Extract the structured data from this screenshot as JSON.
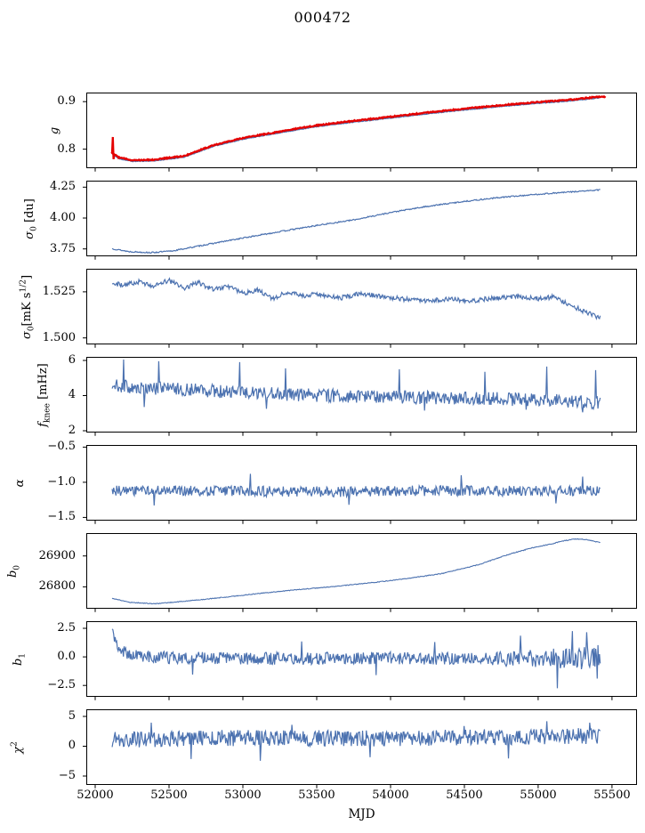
{
  "chart_data": {
    "type": "line",
    "title": "000472",
    "xlabel": "MJD",
    "xlim": [
      51940,
      55669
    ],
    "x_ticks": [
      52000,
      52500,
      53000,
      53500,
      54000,
      54500,
      55000,
      55500
    ],
    "x_tick_labels": [
      "52000",
      "52500",
      "53000",
      "53500",
      "54000",
      "54500",
      "55000",
      "55500"
    ],
    "colors": {
      "blue": "#4c72b0",
      "red": "#e50000",
      "axis": "#000000"
    },
    "panels": [
      {
        "name": "g",
        "ylabel": {
          "pre": "g"
        },
        "ylim": [
          0.76,
          0.919
        ],
        "yticks": [
          0.9,
          0.8
        ],
        "ytick_labels": [
          "0.9",
          "0.8"
        ],
        "series": [
          {
            "name": "g-raw",
            "color": "#4c72b0",
            "lw": 1.4,
            "n": 700,
            "x0": 52110,
            "x1": 55420,
            "seed": 11,
            "noise": 0.0008,
            "trend": [
              [
                52110,
                0.792
              ],
              [
                52160,
                0.78
              ],
              [
                52250,
                0.7745
              ],
              [
                52400,
                0.7755
              ],
              [
                52600,
                0.783
              ],
              [
                52800,
                0.806
              ],
              [
                53000,
                0.821
              ],
              [
                53250,
                0.8345
              ],
              [
                53500,
                0.8475
              ],
              [
                53750,
                0.857
              ],
              [
                54000,
                0.8655
              ],
              [
                54250,
                0.8745
              ],
              [
                54500,
                0.8825
              ],
              [
                54750,
                0.89
              ],
              [
                55000,
                0.8965
              ],
              [
                55200,
                0.901
              ],
              [
                55420,
                0.908
              ]
            ]
          },
          {
            "name": "g-fit",
            "color": "#e50000",
            "lw": 2.3,
            "n": 700,
            "x0": 52110,
            "x1": 55455,
            "seed": 12,
            "noise": 0.0012,
            "trend": [
              [
                52110,
                0.7945
              ],
              [
                52160,
                0.7825
              ],
              [
                52250,
                0.777
              ],
              [
                52400,
                0.778
              ],
              [
                52600,
                0.7855
              ],
              [
                52800,
                0.8085
              ],
              [
                53000,
                0.8235
              ],
              [
                53250,
                0.837
              ],
              [
                53500,
                0.85
              ],
              [
                53750,
                0.8595
              ],
              [
                54000,
                0.868
              ],
              [
                54250,
                0.877
              ],
              [
                54500,
                0.885
              ],
              [
                54750,
                0.8925
              ],
              [
                55000,
                0.899
              ],
              [
                55200,
                0.9035
              ],
              [
                55420,
                0.9105
              ]
            ],
            "spikes": [
              [
                52118,
                0.8255
              ],
              [
                52126,
                0.779
              ]
            ]
          }
        ]
      },
      {
        "name": "sigma0-du",
        "ylabel": {
          "pre": "σ",
          "sub": "0",
          "post": " [du]"
        },
        "ylim": [
          3.69,
          4.303
        ],
        "yticks": [
          4.25,
          4.0,
          3.75
        ],
        "ytick_labels": [
          "4.25",
          "4.00",
          "3.75"
        ],
        "series": [
          {
            "name": "sigma0-du",
            "color": "#4c72b0",
            "lw": 1.2,
            "n": 650,
            "x0": 52115,
            "x1": 55420,
            "seed": 13,
            "noise": 0.005,
            "trend": [
              [
                52115,
                3.752
              ],
              [
                52230,
                3.728
              ],
              [
                52380,
                3.72
              ],
              [
                52520,
                3.733
              ],
              [
                52740,
                3.782
              ],
              [
                53000,
                3.838
              ],
              [
                53250,
                3.89
              ],
              [
                53500,
                3.94
              ],
              [
                53750,
                3.985
              ],
              [
                54000,
                4.045
              ],
              [
                54250,
                4.095
              ],
              [
                54500,
                4.135
              ],
              [
                54750,
                4.168
              ],
              [
                55000,
                4.193
              ],
              [
                55200,
                4.21
              ],
              [
                55420,
                4.228
              ]
            ]
          }
        ]
      },
      {
        "name": "sigma0-mks",
        "ylabel": {
          "pre": "σ",
          "sub": "0",
          "post": "[mK s",
          "sup": "1/2",
          "post2": "]"
        },
        "ylim": [
          1.4965,
          1.5375
        ],
        "yticks": [
          1.525,
          1.5
        ],
        "ytick_labels": [
          "1.525",
          "1.500"
        ],
        "series": [
          {
            "name": "sigma0-mks",
            "color": "#4c72b0",
            "lw": 1.2,
            "n": 640,
            "x0": 52115,
            "x1": 55420,
            "seed": 14,
            "noise": 0.0013,
            "trend": [
              [
                52115,
                1.5296
              ],
              [
                52200,
                1.5288
              ],
              [
                52300,
                1.5305
              ],
              [
                52400,
                1.5282
              ],
              [
                52500,
                1.5312
              ],
              [
                52600,
                1.527
              ],
              [
                52700,
                1.53
              ],
              [
                52800,
                1.5262
              ],
              [
                52900,
                1.528
              ],
              [
                53000,
                1.5242
              ],
              [
                53100,
                1.526
              ],
              [
                53200,
                1.5215
              ],
              [
                53300,
                1.5246
              ],
              [
                53400,
                1.5228
              ],
              [
                53500,
                1.5238
              ],
              [
                53650,
                1.5215
              ],
              [
                53800,
                1.5242
              ],
              [
                53950,
                1.5222
              ],
              [
                54100,
                1.521
              ],
              [
                54250,
                1.52
              ],
              [
                54400,
                1.5212
              ],
              [
                54550,
                1.5202
              ],
              [
                54700,
                1.5216
              ],
              [
                54850,
                1.5226
              ],
              [
                55000,
                1.5212
              ],
              [
                55100,
                1.5222
              ],
              [
                55200,
                1.5186
              ],
              [
                55300,
                1.5148
              ],
              [
                55420,
                1.5108
              ]
            ]
          }
        ]
      },
      {
        "name": "fknee",
        "ylabel": {
          "pre": "f",
          "sub": "knee",
          "post": " [mHz]"
        },
        "ylim": [
          1.9,
          6.2
        ],
        "yticks": [
          6,
          4,
          2
        ],
        "ytick_labels": [
          "6",
          "4",
          "2"
        ],
        "series": [
          {
            "name": "fknee",
            "color": "#4c72b0",
            "lw": 1.2,
            "n": 640,
            "x0": 52115,
            "x1": 55420,
            "seed": 15,
            "noise": 0.38,
            "trend": [
              [
                52115,
                4.6
              ],
              [
                52300,
                4.45
              ],
              [
                52600,
                4.35
              ],
              [
                52900,
                4.22
              ],
              [
                53200,
                4.1
              ],
              [
                53600,
                4.0
              ],
              [
                54000,
                3.92
              ],
              [
                54400,
                3.86
              ],
              [
                54800,
                3.8
              ],
              [
                55100,
                3.74
              ],
              [
                55420,
                3.58
              ]
            ],
            "spikes": [
              [
                52195,
                6.05
              ],
              [
                52430,
                5.95
              ],
              [
                52980,
                5.9
              ],
              [
                53290,
                5.55
              ],
              [
                54060,
                5.5
              ],
              [
                54640,
                5.35
              ],
              [
                55060,
                5.65
              ],
              [
                55390,
                5.45
              ],
              [
                52330,
                3.35
              ],
              [
                53160,
                3.25
              ],
              [
                54230,
                3.15
              ],
              [
                54920,
                3.2
              ],
              [
                55300,
                3.05
              ]
            ]
          }
        ]
      },
      {
        "name": "alpha",
        "ylabel": {
          "pre": "α"
        },
        "ylim": [
          -1.545,
          -0.47
        ],
        "yticks": [
          -0.5,
          -1.0,
          -1.5
        ],
        "ytick_labels": [
          "−0.5",
          "−1.0",
          "−1.5"
        ],
        "series": [
          {
            "name": "alpha",
            "color": "#4c72b0",
            "lw": 1.2,
            "n": 640,
            "x0": 52115,
            "x1": 55420,
            "seed": 16,
            "noise": 0.075,
            "trend": [
              [
                52115,
                -1.115
              ],
              [
                52800,
                -1.125
              ],
              [
                53600,
                -1.135
              ],
              [
                54200,
                -1.12
              ],
              [
                54800,
                -1.125
              ],
              [
                55420,
                -1.115
              ]
            ],
            "spikes": [
              [
                52400,
                -1.33
              ],
              [
                53050,
                -0.88
              ],
              [
                53720,
                -1.32
              ],
              [
                54480,
                -0.9
              ],
              [
                55120,
                -1.3
              ],
              [
                55300,
                -0.92
              ]
            ]
          }
        ]
      },
      {
        "name": "b0",
        "ylabel": {
          "pre": "b",
          "sub": "0"
        },
        "ylim": [
          26729,
          26974
        ],
        "yticks": [
          26900,
          26800
        ],
        "ytick_labels": [
          "26900",
          "26800"
        ],
        "series": [
          {
            "name": "b0",
            "color": "#4c72b0",
            "lw": 1.1,
            "n": 650,
            "x0": 52115,
            "x1": 55420,
            "seed": 17,
            "noise": 1.2,
            "trend": [
              [
                52115,
                26763
              ],
              [
                52230,
                26750
              ],
              [
                52400,
                26745
              ],
              [
                52600,
                26753
              ],
              [
                52850,
                26765
              ],
              [
                53100,
                26778
              ],
              [
                53350,
                26790
              ],
              [
                53600,
                26800
              ],
              [
                53850,
                26812
              ],
              [
                54100,
                26826
              ],
              [
                54350,
                26843
              ],
              [
                54600,
                26872
              ],
              [
                54800,
                26905
              ],
              [
                54950,
                26925
              ],
              [
                55100,
                26940
              ],
              [
                55160,
                26948
              ],
              [
                55250,
                26955
              ],
              [
                55330,
                26953
              ],
              [
                55420,
                26943
              ]
            ]
          }
        ]
      },
      {
        "name": "b1",
        "ylabel": {
          "pre": "b",
          "sub": "1"
        },
        "ylim": [
          -3.5,
          3.12
        ],
        "yticks": [
          2.5,
          0.0,
          -2.5
        ],
        "ytick_labels": [
          "2.5",
          "0.0",
          "−2.5"
        ],
        "series": [
          {
            "name": "b1",
            "color": "#4c72b0",
            "lw": 1.2,
            "n": 650,
            "x0": 52115,
            "x1": 55420,
            "seed": 18,
            "noise": 0.55,
            "noise_ramp": {
              "from": 54650,
              "extra": 0.55
            },
            "trend": [
              [
                52115,
                2.55
              ],
              [
                52135,
                1.4
              ],
              [
                52165,
                0.7
              ],
              [
                52230,
                0.15
              ],
              [
                52400,
                -0.08
              ],
              [
                53200,
                -0.15
              ],
              [
                54000,
                -0.1
              ],
              [
                54800,
                -0.18
              ],
              [
                55420,
                -0.05
              ]
            ],
            "spikes": [
              [
                55128,
                -2.75
              ],
              [
                54880,
                1.85
              ],
              [
                55230,
                2.25
              ],
              [
                55330,
                2.15
              ],
              [
                55400,
                -1.9
              ],
              [
                52660,
                -1.55
              ],
              [
                53400,
                1.35
              ],
              [
                53900,
                -1.6
              ],
              [
                54300,
                1.3
              ]
            ]
          }
        ]
      },
      {
        "name": "chi2",
        "ylabel": {
          "pre": "χ",
          "sup": "2"
        },
        "ylim": [
          -6.5,
          6.2
        ],
        "yticks": [
          5,
          0,
          -5
        ],
        "ytick_labels": [
          "5",
          "0",
          "−5"
        ],
        "series": [
          {
            "name": "chi2",
            "color": "#4c72b0",
            "lw": 1.2,
            "n": 650,
            "x0": 52115,
            "x1": 55420,
            "seed": 19,
            "noise": 1.35,
            "trend": [
              [
                52115,
                1.05
              ],
              [
                52600,
                1.35
              ],
              [
                53200,
                1.4
              ],
              [
                53800,
                1.3
              ],
              [
                54400,
                1.45
              ],
              [
                55000,
                1.6
              ],
              [
                55420,
                1.75
              ]
            ],
            "spikes": [
              [
                52380,
                3.95
              ],
              [
                52650,
                -2.15
              ],
              [
                53120,
                -2.45
              ],
              [
                53330,
                3.6
              ],
              [
                53860,
                -1.85
              ],
              [
                54500,
                3.4
              ],
              [
                54800,
                -2.05
              ],
              [
                55060,
                4.2
              ],
              [
                55350,
                3.95
              ]
            ]
          }
        ]
      }
    ]
  }
}
